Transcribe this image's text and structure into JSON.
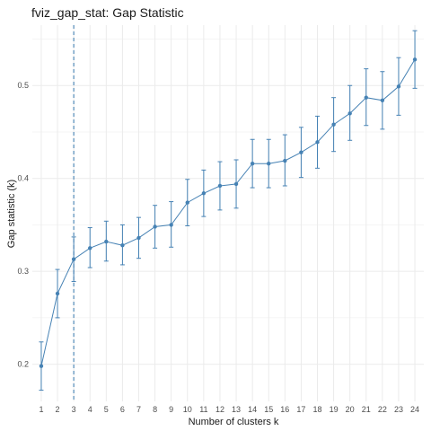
{
  "chart_data": {
    "type": "line",
    "title": "fviz_gap_stat: Gap Statistic",
    "xlabel": "Number of clusters k",
    "ylabel": "Gap statistic (k)",
    "x": [
      1,
      2,
      3,
      4,
      5,
      6,
      7,
      8,
      9,
      10,
      11,
      12,
      13,
      14,
      15,
      16,
      17,
      18,
      19,
      20,
      21,
      22,
      23,
      24
    ],
    "x_tick_labels": [
      "1",
      "2",
      "3",
      "4",
      "5",
      "6",
      "7",
      "8",
      "9",
      "10",
      "11",
      "12",
      "13",
      "14",
      "15",
      "16",
      "17",
      "18",
      "19",
      "20",
      "21",
      "22",
      "23",
      "24"
    ],
    "series": [
      {
        "values": [
          0.198,
          0.276,
          0.313,
          0.325,
          0.332,
          0.328,
          0.336,
          0.348,
          0.35,
          0.374,
          0.384,
          0.392,
          0.394,
          0.416,
          0.416,
          0.419,
          0.428,
          0.439,
          0.458,
          0.47,
          0.487,
          0.484,
          0.499,
          0.528
        ],
        "error_low": [
          0.172,
          0.25,
          0.289,
          0.304,
          0.311,
          0.307,
          0.314,
          0.325,
          0.326,
          0.349,
          0.359,
          0.366,
          0.368,
          0.39,
          0.39,
          0.392,
          0.401,
          0.411,
          0.429,
          0.441,
          0.457,
          0.453,
          0.468,
          0.497
        ],
        "error_high": [
          0.224,
          0.302,
          0.337,
          0.347,
          0.354,
          0.35,
          0.358,
          0.371,
          0.375,
          0.399,
          0.409,
          0.418,
          0.42,
          0.442,
          0.442,
          0.447,
          0.455,
          0.467,
          0.487,
          0.5,
          0.518,
          0.515,
          0.53,
          0.559
        ]
      }
    ],
    "y_ticks": [
      0.2,
      0.3,
      0.4,
      0.5
    ],
    "y_tick_labels": [
      "0.2",
      "0.3",
      "0.4",
      "0.5"
    ],
    "ylim": [
      0.16,
      0.565
    ],
    "xlim": [
      0.45,
      24.55
    ],
    "optimal_k": 3,
    "grid": true,
    "colors": {
      "series": "#4682B4",
      "vline": "#4682B4",
      "grid": "#ebebeb"
    }
  }
}
